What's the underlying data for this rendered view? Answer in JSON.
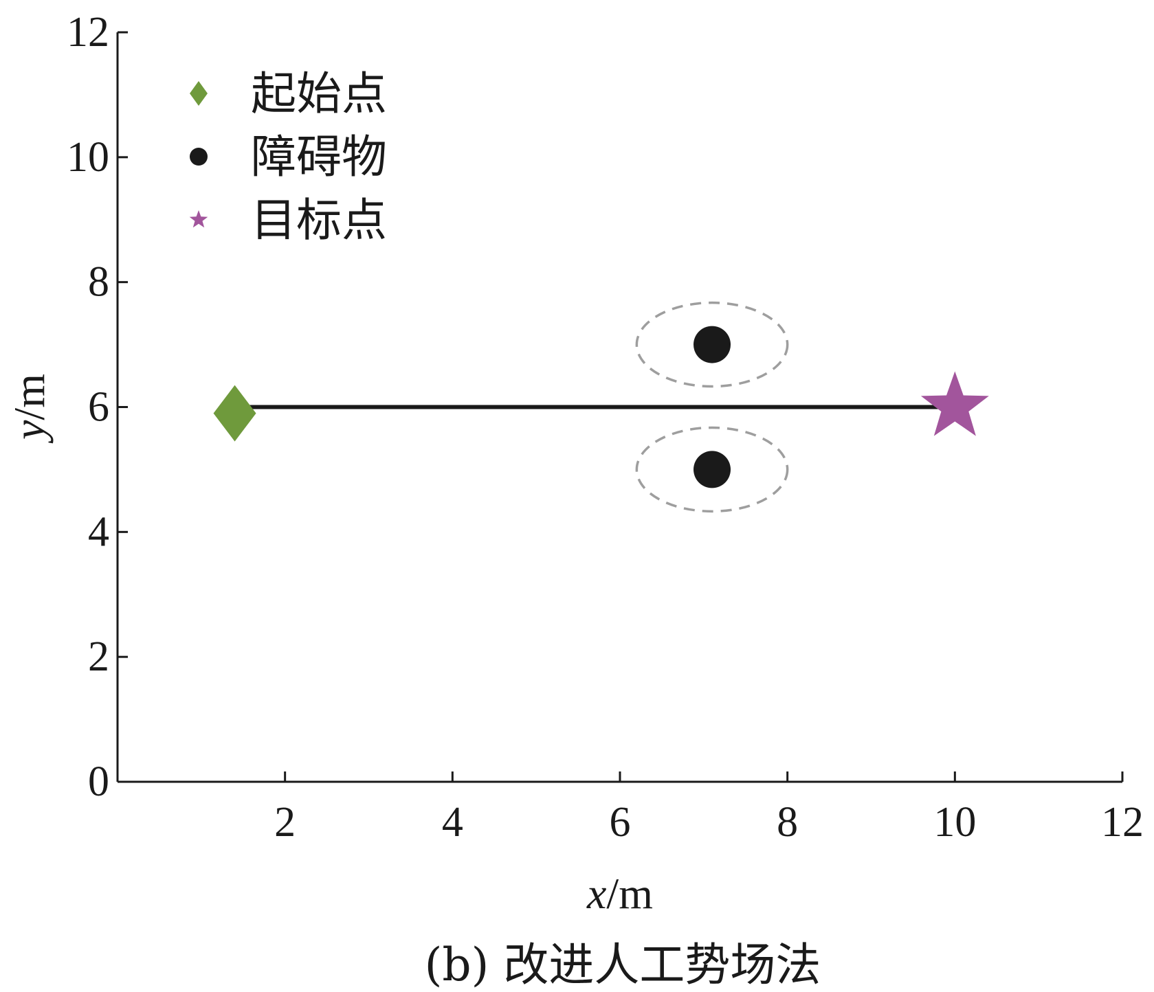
{
  "chart_data": {
    "type": "scatter",
    "title": "",
    "caption": "(b) 改进人工势场法",
    "xlabel": {
      "var": "x",
      "unit": "/m"
    },
    "ylabel": {
      "var": "y",
      "unit": "/m"
    },
    "xlim": [
      0,
      12
    ],
    "ylim": [
      0,
      12
    ],
    "xticks": [
      2,
      4,
      6,
      8,
      10,
      12
    ],
    "yticks": [
      0,
      2,
      4,
      6,
      8,
      10,
      12
    ],
    "grid": false,
    "legend_position": "top-left",
    "legend": [
      {
        "label": "起始点",
        "marker": "diamond-icon",
        "color": "#6f9a3c"
      },
      {
        "label": "障碍物",
        "marker": "circle-icon",
        "color": "#1a1a1a"
      },
      {
        "label": "目标点",
        "marker": "star-icon",
        "color": "#a2559c"
      }
    ],
    "path": {
      "x": [
        1.4,
        10.0
      ],
      "y": [
        6.0,
        6.0
      ],
      "color": "#1a1a1a"
    },
    "start": {
      "x": 1.4,
      "y": 5.9
    },
    "goal": {
      "x": 10.0,
      "y": 6.0
    },
    "obstacles": [
      {
        "x": 7.1,
        "y": 7.0
      },
      {
        "x": 7.1,
        "y": 5.0
      }
    ],
    "influence_zones": [
      {
        "cx": 7.1,
        "cy": 7.0,
        "rx": 0.9,
        "ry": 0.67,
        "color": "#9e9e9e"
      },
      {
        "cx": 7.1,
        "cy": 5.0,
        "rx": 0.9,
        "ry": 0.67,
        "color": "#9e9e9e"
      }
    ]
  }
}
